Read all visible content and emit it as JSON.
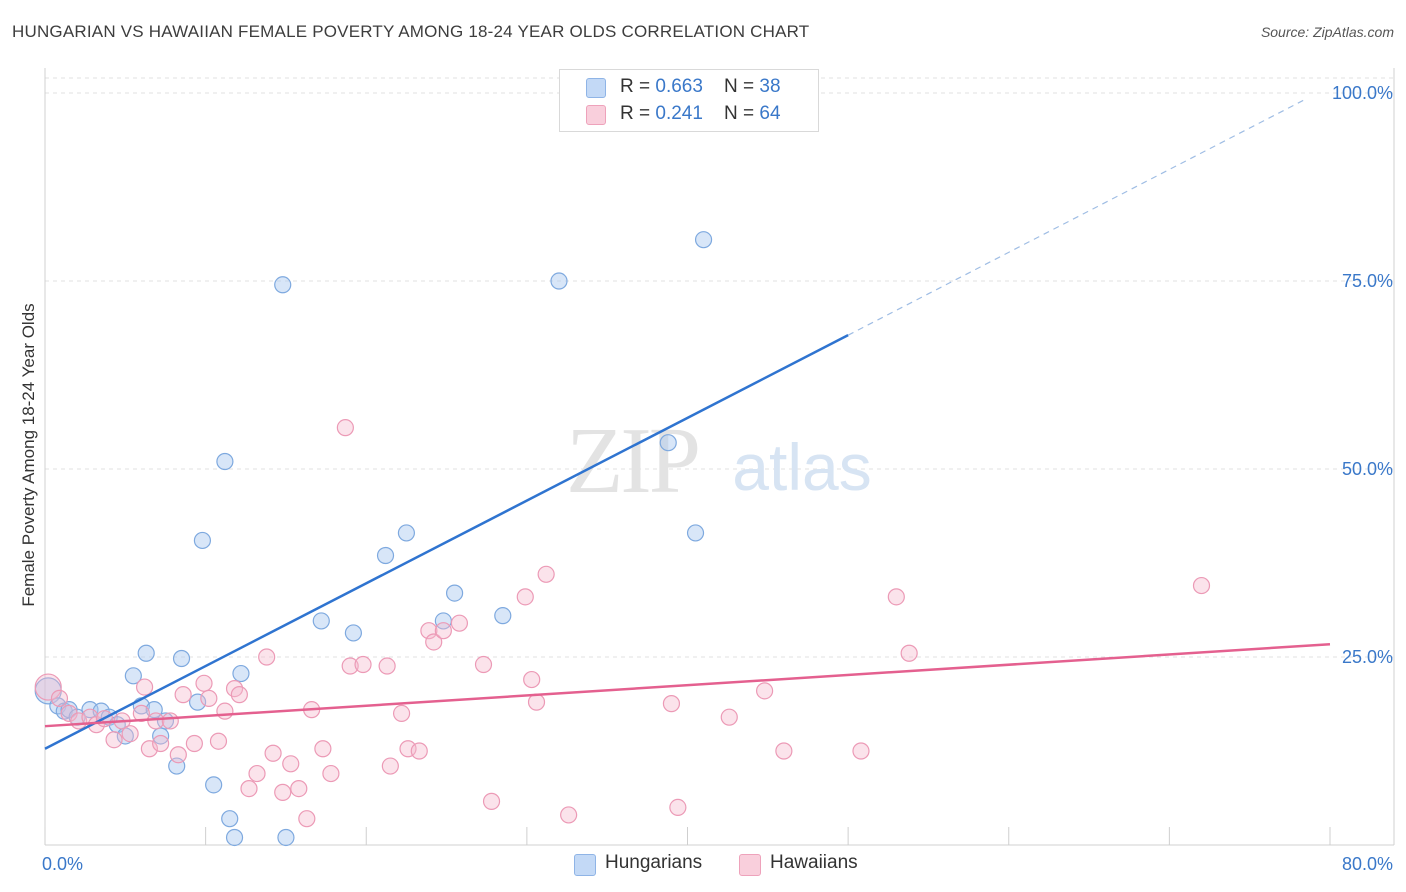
{
  "title": "HUNGARIAN VS HAWAIIAN FEMALE POVERTY AMONG 18-24 YEAR OLDS CORRELATION CHART",
  "source": "Source: ZipAtlas.com",
  "watermark": {
    "zip": "ZIP",
    "atlas": "atlas"
  },
  "legend": {
    "rows": [
      {
        "r_label": "R = ",
        "r_value": "0.663",
        "n_label": "N = ",
        "n_value": "38",
        "color": "#a9c8f0"
      },
      {
        "r_label": "R = ",
        "r_value": "0.241",
        "n_label": "N = ",
        "n_value": "64",
        "color": "#f6b8cc"
      }
    ]
  },
  "bottom_legend": [
    {
      "label": "Hungarians",
      "color": "#a9c8f0"
    },
    {
      "label": "Hawaiians",
      "color": "#f6b8cc"
    }
  ],
  "chart_data": {
    "type": "scatter",
    "xlabel": "",
    "ylabel": "Female Poverty Among 18-24 Year Olds",
    "xlim": [
      0,
      80
    ],
    "ylim": [
      0,
      100
    ],
    "x_tick_labels": [
      {
        "value": 0,
        "label": "0.0%"
      },
      {
        "value": 80,
        "label": "80.0%"
      }
    ],
    "y_tick_labels": [
      {
        "value": 25,
        "label": "25.0%"
      },
      {
        "value": 50,
        "label": "50.0%"
      },
      {
        "value": 75,
        "label": "75.0%"
      },
      {
        "value": 100,
        "label": "100.0%"
      }
    ],
    "grid": true,
    "series": [
      {
        "name": "Hungarians",
        "color": "#a9c8f0",
        "line_color": "#2f74d0",
        "r": 0.663,
        "n": 38,
        "trend": {
          "x0": 0,
          "y0": 12.8,
          "x1": 50,
          "y1": 67.8,
          "dash_to_x": 78.5,
          "dash_to_y": 99.2
        },
        "points": [
          [
            0.2,
            20.5
          ],
          [
            0.8,
            18.5
          ],
          [
            1.2,
            17.8
          ],
          [
            1.5,
            18.0
          ],
          [
            2.0,
            17.0
          ],
          [
            2.8,
            18.0
          ],
          [
            3.5,
            17.8
          ],
          [
            4.0,
            17.0
          ],
          [
            4.5,
            16.0
          ],
          [
            5.0,
            14.5
          ],
          [
            5.5,
            22.5
          ],
          [
            6.0,
            18.5
          ],
          [
            6.3,
            25.5
          ],
          [
            6.8,
            18.0
          ],
          [
            7.2,
            14.5
          ],
          [
            7.5,
            16.5
          ],
          [
            8.2,
            10.5
          ],
          [
            8.5,
            24.8
          ],
          [
            9.5,
            19.0
          ],
          [
            9.8,
            40.5
          ],
          [
            10.5,
            8.0
          ],
          [
            11.2,
            51.0
          ],
          [
            11.5,
            3.5
          ],
          [
            11.8,
            1.0
          ],
          [
            12.2,
            22.8
          ],
          [
            14.8,
            74.5
          ],
          [
            15.0,
            1.0
          ],
          [
            17.2,
            29.8
          ],
          [
            19.2,
            28.2
          ],
          [
            21.2,
            38.5
          ],
          [
            22.5,
            41.5
          ],
          [
            24.8,
            29.8
          ],
          [
            25.5,
            33.5
          ],
          [
            28.5,
            30.5
          ],
          [
            32.0,
            75.0
          ],
          [
            38.8,
            53.5
          ],
          [
            40.5,
            41.5
          ],
          [
            41.0,
            80.5
          ]
        ]
      },
      {
        "name": "Hawaiians",
        "color": "#f6b8cc",
        "line_color": "#e4608f",
        "r": 0.241,
        "n": 64,
        "trend": {
          "x0": 0,
          "y0": 15.8,
          "x1": 80,
          "y1": 26.7
        },
        "points": [
          [
            0.2,
            21.0
          ],
          [
            0.9,
            19.5
          ],
          [
            1.5,
            17.5
          ],
          [
            2.1,
            16.5
          ],
          [
            2.8,
            17.0
          ],
          [
            3.2,
            16.0
          ],
          [
            3.7,
            16.8
          ],
          [
            4.3,
            14.0
          ],
          [
            4.8,
            16.5
          ],
          [
            5.3,
            14.8
          ],
          [
            6.0,
            17.5
          ],
          [
            6.2,
            21.0
          ],
          [
            6.5,
            12.8
          ],
          [
            6.9,
            16.5
          ],
          [
            7.2,
            13.5
          ],
          [
            7.8,
            16.5
          ],
          [
            8.3,
            12.0
          ],
          [
            8.6,
            20.0
          ],
          [
            9.3,
            13.5
          ],
          [
            9.9,
            21.5
          ],
          [
            10.2,
            19.5
          ],
          [
            10.8,
            13.8
          ],
          [
            11.2,
            17.8
          ],
          [
            11.8,
            20.8
          ],
          [
            12.1,
            20.0
          ],
          [
            12.7,
            7.5
          ],
          [
            13.2,
            9.5
          ],
          [
            13.8,
            25.0
          ],
          [
            14.2,
            12.2
          ],
          [
            14.8,
            7.0
          ],
          [
            15.3,
            10.8
          ],
          [
            15.8,
            7.5
          ],
          [
            16.3,
            3.5
          ],
          [
            16.6,
            18.0
          ],
          [
            17.3,
            12.8
          ],
          [
            17.8,
            9.5
          ],
          [
            18.7,
            55.5
          ],
          [
            19.0,
            23.8
          ],
          [
            19.8,
            24.0
          ],
          [
            21.3,
            23.8
          ],
          [
            21.5,
            10.5
          ],
          [
            22.2,
            17.5
          ],
          [
            22.6,
            12.8
          ],
          [
            23.3,
            12.5
          ],
          [
            23.9,
            28.5
          ],
          [
            24.2,
            27.0
          ],
          [
            24.8,
            28.5
          ],
          [
            25.8,
            29.5
          ],
          [
            27.3,
            24.0
          ],
          [
            27.8,
            5.8
          ],
          [
            29.9,
            33.0
          ],
          [
            30.3,
            22.0
          ],
          [
            30.6,
            19.0
          ],
          [
            31.2,
            36.0
          ],
          [
            32.6,
            4.0
          ],
          [
            39.0,
            18.8
          ],
          [
            39.4,
            5.0
          ],
          [
            42.6,
            17.0
          ],
          [
            44.8,
            20.5
          ],
          [
            46.0,
            12.5
          ],
          [
            50.8,
            12.5
          ],
          [
            53.0,
            33.0
          ],
          [
            53.8,
            25.5
          ],
          [
            72.0,
            34.5
          ]
        ]
      }
    ]
  }
}
